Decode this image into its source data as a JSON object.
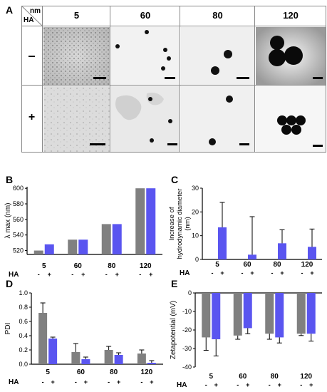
{
  "panel_labels": {
    "a": "A",
    "b": "B",
    "c": "C",
    "d": "D",
    "e": "E"
  },
  "grid": {
    "header_nm": "nm",
    "header_ha": "HA",
    "sizes": [
      "5",
      "60",
      "80",
      "120"
    ],
    "rows": [
      "–",
      "+"
    ]
  },
  "charts": {
    "B": {
      "ylabel": "λ max (nm)",
      "yticks": [
        "520",
        "540",
        "560",
        "580",
        "600"
      ],
      "categories": [
        "5",
        "60",
        "80",
        "120"
      ],
      "ha_label": "HA",
      "signs": [
        "-",
        "+"
      ]
    },
    "C": {
      "ylabel_1": "Increase of",
      "ylabel_2": "hydrodynamic diameter",
      "ylabel_3": "(nm)",
      "yticks": [
        "0",
        "10",
        "20",
        "30"
      ],
      "categories": [
        "5",
        "60",
        "80",
        "120"
      ],
      "ha_label": "HA",
      "signs": [
        "-",
        "+"
      ]
    },
    "D": {
      "ylabel": "PDI",
      "yticks": [
        "0.0",
        "0.2",
        "0.4",
        "0.6",
        "0.8",
        "1.0"
      ],
      "categories": [
        "5",
        "60",
        "80",
        "120"
      ],
      "ha_label": "HA",
      "signs": [
        "-",
        "+"
      ]
    },
    "E": {
      "ylabel": "Zetapotential (mV)",
      "yticks": [
        "0",
        "-10",
        "-20",
        "-30",
        "-40"
      ],
      "categories": [
        "5",
        "60",
        "80",
        "120"
      ],
      "ha_label": "HA",
      "signs": [
        "-",
        "+"
      ]
    }
  },
  "colors": {
    "minus": "#808080",
    "plus": "#5a55f0"
  },
  "chart_data": [
    {
      "id": "B",
      "type": "bar",
      "categories": [
        "5",
        "60",
        "80",
        "120"
      ],
      "series": [
        {
          "name": "-",
          "values": [
            520,
            534,
            554,
            600
          ]
        },
        {
          "name": "+",
          "values": [
            528,
            534,
            554,
            600
          ]
        }
      ],
      "ylabel": "λ max (nm)",
      "ylim": [
        515,
        602
      ]
    },
    {
      "id": "C",
      "type": "bar",
      "categories": [
        "5",
        "60",
        "80",
        "120"
      ],
      "series": [
        {
          "name": "+",
          "values": [
            13.5,
            2,
            6.8,
            5.3
          ],
          "error": [
            10.5,
            16,
            5.7,
            7.5
          ]
        }
      ],
      "ylabel": "Increase of hydrodynamic diameter (nm)",
      "ylim": [
        0,
        30
      ]
    },
    {
      "id": "D",
      "type": "bar",
      "categories": [
        "5",
        "60",
        "80",
        "120"
      ],
      "series": [
        {
          "name": "-",
          "values": [
            0.72,
            0.17,
            0.2,
            0.15
          ],
          "error": [
            0.14,
            0.12,
            0.05,
            0.05
          ]
        },
        {
          "name": "+",
          "values": [
            0.36,
            0.07,
            0.13,
            0.02
          ],
          "error": [
            0.02,
            0.03,
            0.03,
            0.03
          ]
        }
      ],
      "ylabel": "PDI",
      "ylim": [
        0,
        1.0
      ]
    },
    {
      "id": "E",
      "type": "bar",
      "categories": [
        "5",
        "60",
        "80",
        "120"
      ],
      "series": [
        {
          "name": "-",
          "values": [
            -24,
            -23,
            -22,
            -22
          ],
          "error": [
            7,
            2,
            3,
            1
          ]
        },
        {
          "name": "+",
          "values": [
            -25,
            -19,
            -24,
            -22
          ],
          "error": [
            9,
            3,
            3,
            4
          ]
        }
      ],
      "ylabel": "Zetapotential (mV)",
      "ylim": [
        -40,
        0
      ]
    }
  ]
}
